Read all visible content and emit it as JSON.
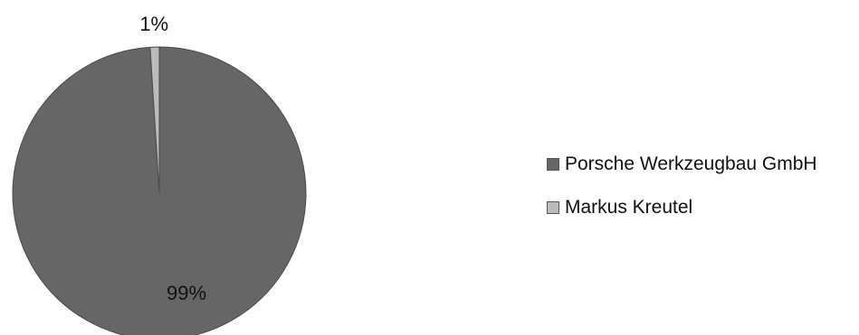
{
  "chart_data": {
    "type": "pie",
    "slices": [
      {
        "label": "Porsche Werkzeugbau GmbH",
        "value": 99,
        "display": "99%",
        "color": "#666666"
      },
      {
        "label": "Markus Kreutel",
        "value": 1,
        "display": "1%",
        "color": "#bbbbbb"
      }
    ],
    "legend_position": "right"
  }
}
